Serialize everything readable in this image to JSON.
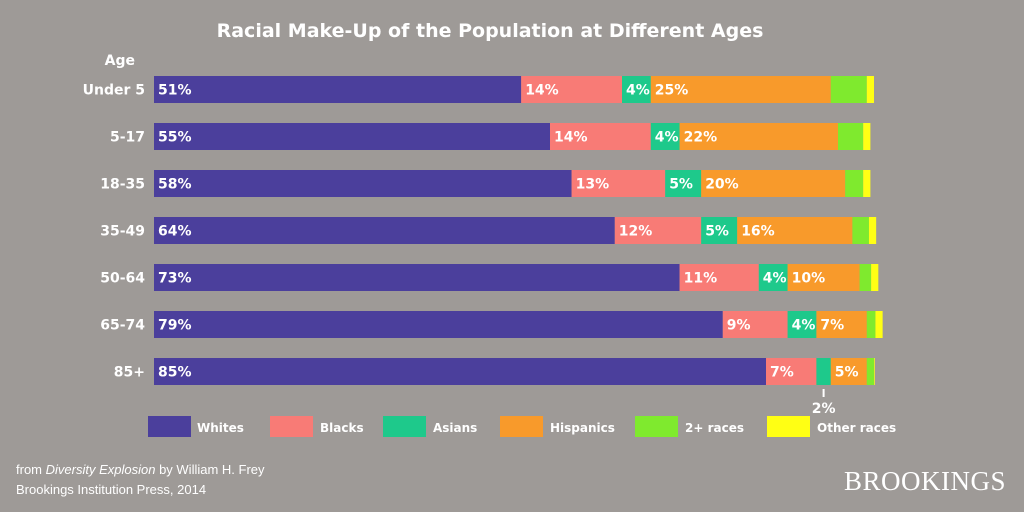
{
  "chart_data": {
    "type": "bar",
    "orientation": "horizontal",
    "stacked": true,
    "title": "Racial Make-Up of the Population at Different Ages",
    "ylabel": "Age",
    "xlim": [
      0,
      100
    ],
    "categories": [
      "Under 5",
      "5-17",
      "18-35",
      "35-49",
      "50-64",
      "65-74",
      "85+"
    ],
    "series": [
      {
        "name": "Whites",
        "color": "#4b3f9c",
        "values": [
          51,
          55,
          58,
          64,
          73,
          79,
          85
        ],
        "labels": [
          "51%",
          "55%",
          "58%",
          "64%",
          "73%",
          "79%",
          "85%"
        ]
      },
      {
        "name": "Blacks",
        "color": "#f87b76",
        "values": [
          14,
          14,
          13,
          12,
          11,
          9,
          7
        ],
        "labels": [
          "14%",
          "14%",
          "13%",
          "12%",
          "11%",
          "9%",
          "7%"
        ]
      },
      {
        "name": "Asians",
        "color": "#1ec98b",
        "values": [
          4,
          4,
          5,
          5,
          4,
          4,
          2
        ],
        "labels": [
          "4%",
          "4%",
          "5%",
          "5%",
          "4%",
          "4%",
          "2%"
        ]
      },
      {
        "name": "Hispanics",
        "color": "#f89a2b",
        "values": [
          25,
          22,
          20,
          16,
          10,
          7,
          5
        ],
        "labels": [
          "25%",
          "22%",
          "20%",
          "16%",
          "10%",
          "7%",
          "5%"
        ]
      },
      {
        "name": "2+ races",
        "color": "#7fea2e",
        "values": [
          5,
          3.5,
          2.5,
          2.3,
          1.6,
          1.2,
          1.0
        ],
        "labels": [
          "",
          "",
          "",
          "",
          "",
          "",
          ""
        ]
      },
      {
        "name": "Other races",
        "color": "#ffff14",
        "values": [
          1.0,
          1.0,
          1.0,
          1.0,
          1.0,
          1.0,
          0.1
        ],
        "labels": [
          "",
          "",
          "",
          "",
          "",
          "",
          ""
        ]
      }
    ],
    "grid": false,
    "legend_position": "bottom"
  },
  "source": {
    "prefix": "from ",
    "book": "Diversity Explosion",
    "suffix": " by William H. Frey",
    "line2": "Brookings Institution Press, 2014"
  },
  "brand": "BROOKINGS"
}
